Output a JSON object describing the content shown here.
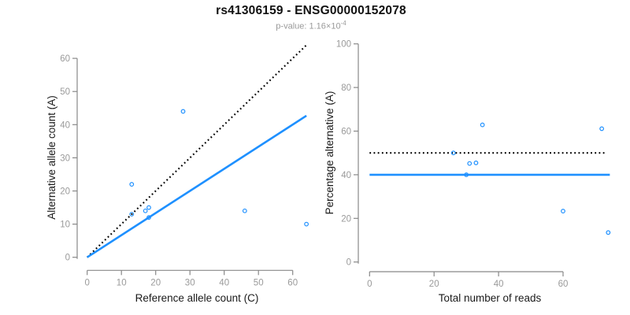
{
  "header": {
    "title": "rs41306159 - ENSG00000152078",
    "subtitle_prefix": "p-value: 1.16×10",
    "subtitle_exponent": "-4"
  },
  "colors": {
    "accent_blue": "#1E90FF",
    "dotted_line_black": "#000000",
    "axis_gray": "#888888",
    "tick_label_gray": "#9a9a9a",
    "axis_title_color": "#1a1a1a",
    "subtitle_gray": "#9a9a9a"
  },
  "chart_data": [
    {
      "type": "scatter",
      "name": "allele-counts-panel",
      "xlabel": "Reference allele count (C)",
      "ylabel": "Alternative allele count (A)",
      "xticks": [
        0,
        10,
        20,
        30,
        40,
        50,
        60
      ],
      "yticks": [
        0,
        10,
        20,
        30,
        40,
        50,
        60
      ],
      "xlim": [
        0,
        65
      ],
      "ylim": [
        0,
        64
      ],
      "grid": false,
      "points": [
        [
          13,
          22
        ],
        [
          13,
          13
        ],
        [
          17,
          14
        ],
        [
          18,
          15
        ],
        [
          18,
          12
        ],
        [
          28,
          44
        ],
        [
          46,
          14
        ],
        [
          64,
          10
        ]
      ],
      "lines": [
        {
          "name": "identity-line",
          "style": "dotted",
          "color": "#000000",
          "x1": 0,
          "y1": 0,
          "x2": 64,
          "y2": 64
        },
        {
          "name": "fitted-ratio-line",
          "style": "solid",
          "color": "#1E90FF",
          "x1": 0,
          "y1": 0,
          "x2": 64,
          "y2": 42.7
        }
      ]
    },
    {
      "type": "scatter",
      "name": "percentage-reads-panel",
      "xlabel": "Total number of reads",
      "ylabel": "Percentage alternative (A)",
      "xticks": [
        0,
        20,
        40,
        60
      ],
      "yticks": [
        0,
        20,
        40,
        60,
        80,
        100
      ],
      "xlim": [
        0,
        75
      ],
      "ylim": [
        0,
        100
      ],
      "grid": false,
      "points": [
        [
          35,
          62.86
        ],
        [
          26,
          50
        ],
        [
          31,
          45.16
        ],
        [
          33,
          45.45
        ],
        [
          30,
          40
        ],
        [
          72,
          61.11
        ],
        [
          60,
          23.33
        ],
        [
          74,
          13.51
        ]
      ],
      "lines": [
        {
          "name": "fifty-percent-line",
          "style": "dotted",
          "color": "#000000",
          "x1": 0,
          "y1": 50,
          "x2": 73,
          "y2": 50
        },
        {
          "name": "mean-percentage-line",
          "style": "solid",
          "color": "#1E90FF",
          "x1": 0,
          "y1": 40,
          "x2": 74.5,
          "y2": 40
        }
      ]
    }
  ]
}
